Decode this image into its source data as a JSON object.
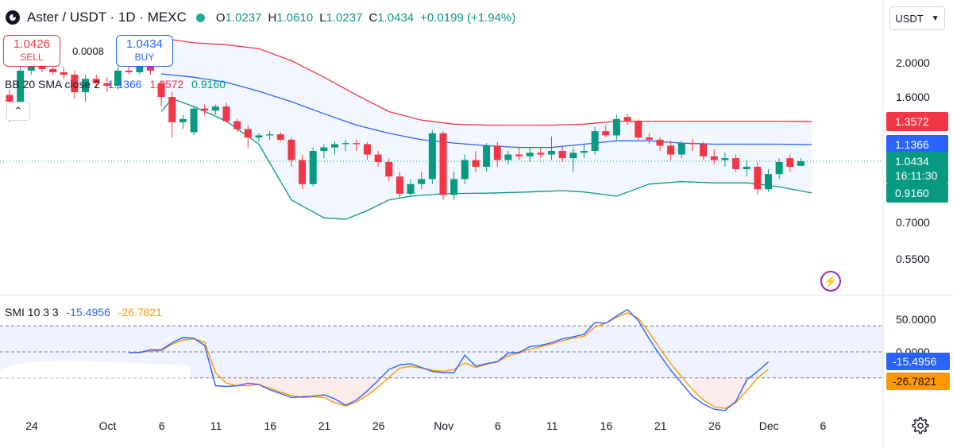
{
  "header": {
    "symbol": "Aster / USDT · 1D · MEXC",
    "o_label": "O",
    "open": "1.0237",
    "h_label": "H",
    "high": "1.0610",
    "l_label": "L",
    "low": "1.0237",
    "c_label": "C",
    "close": "1.0434",
    "change": "+0.0199 (+1.94%)"
  },
  "trade": {
    "sell_price": "1.0426",
    "sell_label": "SELL",
    "spread": "0.0008",
    "buy_price": "1.0434",
    "buy_label": "BUY"
  },
  "indicators": {
    "bb_label": "BB 20 SMA close 2",
    "bb_mid": "1.1366",
    "bb_upper": "1.3572",
    "bb_lower": "0.9160",
    "smi_label": "SMI 10 3 3",
    "smi_value": "-15.4956",
    "smi_signal": "-26.7821"
  },
  "currency_selector": "USDT",
  "colors": {
    "up": "#089981",
    "down": "#f23645",
    "bb_basis": "#2962ff",
    "bb_upper": "#f23645",
    "bb_lower": "#089981",
    "smi": "#2962ff",
    "signal": "#ff9800",
    "axis_text": "#131722"
  },
  "chart_data": {
    "type": "candlestick",
    "title": "Aster / USDT · 1D · MEXC",
    "x_ticks": [
      "24",
      "Oct",
      "6",
      "11",
      "16",
      "21",
      "26",
      "Nov",
      "6",
      "11",
      "16",
      "21",
      "26",
      "Dec",
      "6"
    ],
    "x_tick_days": [
      0,
      7,
      12,
      17,
      22,
      27,
      32,
      38,
      43,
      48,
      53,
      58,
      63,
      68,
      73
    ],
    "y_ticks": [
      "2.0000",
      "1.6000",
      "0.7000",
      "0.5500"
    ],
    "y_tick_values": [
      2.0,
      1.6,
      0.7,
      0.55
    ],
    "price_labels": [
      {
        "text": "1.3572",
        "value": 1.3572,
        "kind": "upper"
      },
      {
        "text": "1.1366",
        "value": 1.1366,
        "kind": "basis"
      },
      {
        "text": "1.0434",
        "value": 1.0434,
        "kind": "last",
        "sub": "16:11:30"
      },
      {
        "text": "0.9160",
        "value": 0.916,
        "kind": "lower"
      }
    ],
    "candles": [
      {
        "d": 0,
        "o": 1.62,
        "h": 1.68,
        "l": 1.35,
        "c": 1.55
      },
      {
        "d": 1,
        "o": 1.55,
        "h": 1.95,
        "l": 1.5,
        "c": 1.9
      },
      {
        "d": 2,
        "o": 1.9,
        "h": 2.0,
        "l": 1.85,
        "c": 1.95
      },
      {
        "d": 3,
        "o": 1.95,
        "h": 2.05,
        "l": 1.88,
        "c": 1.92
      },
      {
        "d": 4,
        "o": 1.92,
        "h": 1.98,
        "l": 1.85,
        "c": 1.88
      },
      {
        "d": 5,
        "o": 1.88,
        "h": 1.95,
        "l": 1.8,
        "c": 1.85
      },
      {
        "d": 6,
        "o": 1.85,
        "h": 1.9,
        "l": 1.58,
        "c": 1.65
      },
      {
        "d": 7,
        "o": 1.65,
        "h": 1.85,
        "l": 1.55,
        "c": 1.8
      },
      {
        "d": 8,
        "o": 1.8,
        "h": 1.85,
        "l": 1.7,
        "c": 1.75
      },
      {
        "d": 9,
        "o": 1.75,
        "h": 1.82,
        "l": 1.65,
        "c": 1.72
      },
      {
        "d": 10,
        "o": 1.72,
        "h": 1.95,
        "l": 1.68,
        "c": 1.9
      },
      {
        "d": 11,
        "o": 1.9,
        "h": 1.98,
        "l": 1.85,
        "c": 1.88
      },
      {
        "d": 12,
        "o": 1.88,
        "h": 2.08,
        "l": 1.85,
        "c": 2.02
      },
      {
        "d": 13,
        "o": 2.02,
        "h": 2.05,
        "l": 1.85,
        "c": 1.9
      },
      {
        "d": 14,
        "o": 1.75,
        "h": 1.78,
        "l": 1.5,
        "c": 1.6
      },
      {
        "d": 15,
        "o": 1.6,
        "h": 1.65,
        "l": 1.2,
        "c": 1.35
      },
      {
        "d": 16,
        "o": 1.35,
        "h": 1.42,
        "l": 1.28,
        "c": 1.38
      },
      {
        "d": 17,
        "o": 1.25,
        "h": 1.5,
        "l": 1.22,
        "c": 1.48
      },
      {
        "d": 18,
        "o": 1.48,
        "h": 1.52,
        "l": 1.42,
        "c": 1.46
      },
      {
        "d": 19,
        "o": 1.46,
        "h": 1.52,
        "l": 1.42,
        "c": 1.5
      },
      {
        "d": 20,
        "o": 1.5,
        "h": 1.54,
        "l": 1.35,
        "c": 1.36
      },
      {
        "d": 21,
        "o": 1.36,
        "h": 1.38,
        "l": 1.25,
        "c": 1.28
      },
      {
        "d": 22,
        "o": 1.28,
        "h": 1.32,
        "l": 1.12,
        "c": 1.2
      },
      {
        "d": 23,
        "o": 1.2,
        "h": 1.24,
        "l": 1.16,
        "c": 1.22
      },
      {
        "d": 24,
        "o": 1.22,
        "h": 1.26,
        "l": 1.18,
        "c": 1.23
      },
      {
        "d": 25,
        "o": 1.23,
        "h": 1.25,
        "l": 1.16,
        "c": 1.18
      },
      {
        "d": 26,
        "o": 1.18,
        "h": 1.2,
        "l": 1.02,
        "c": 1.05
      },
      {
        "d": 27,
        "o": 1.05,
        "h": 1.08,
        "l": 0.93,
        "c": 0.95
      },
      {
        "d": 28,
        "o": 0.95,
        "h": 1.12,
        "l": 0.94,
        "c": 1.1
      },
      {
        "d": 29,
        "o": 1.1,
        "h": 1.14,
        "l": 1.06,
        "c": 1.12
      },
      {
        "d": 30,
        "o": 1.12,
        "h": 1.16,
        "l": 1.08,
        "c": 1.14
      },
      {
        "d": 31,
        "o": 1.14,
        "h": 1.18,
        "l": 1.1,
        "c": 1.15
      },
      {
        "d": 32,
        "o": 1.15,
        "h": 1.18,
        "l": 1.1,
        "c": 1.14
      },
      {
        "d": 33,
        "o": 1.14,
        "h": 1.16,
        "l": 1.05,
        "c": 1.08
      },
      {
        "d": 34,
        "o": 1.08,
        "h": 1.1,
        "l": 1.02,
        "c": 1.04
      },
      {
        "d": 35,
        "o": 1.04,
        "h": 1.06,
        "l": 0.96,
        "c": 0.98
      },
      {
        "d": 36,
        "o": 0.98,
        "h": 1.0,
        "l": 0.88,
        "c": 0.91
      },
      {
        "d": 37,
        "o": 0.91,
        "h": 0.97,
        "l": 0.89,
        "c": 0.95
      },
      {
        "d": 38,
        "o": 0.95,
        "h": 1.0,
        "l": 0.93,
        "c": 0.97
      },
      {
        "d": 39,
        "o": 0.97,
        "h": 1.27,
        "l": 0.95,
        "c": 1.24
      },
      {
        "d": 40,
        "o": 1.24,
        "h": 1.26,
        "l": 0.86,
        "c": 0.9
      },
      {
        "d": 41,
        "o": 0.9,
        "h": 1.0,
        "l": 0.86,
        "c": 0.97
      },
      {
        "d": 42,
        "o": 0.97,
        "h": 1.08,
        "l": 0.95,
        "c": 1.05
      },
      {
        "d": 43,
        "o": 1.05,
        "h": 1.1,
        "l": 1.0,
        "c": 1.02
      },
      {
        "d": 44,
        "o": 1.02,
        "h": 1.15,
        "l": 1.0,
        "c": 1.13
      },
      {
        "d": 45,
        "o": 1.13,
        "h": 1.16,
        "l": 1.02,
        "c": 1.05
      },
      {
        "d": 46,
        "o": 1.05,
        "h": 1.1,
        "l": 1.03,
        "c": 1.08
      },
      {
        "d": 47,
        "o": 1.08,
        "h": 1.12,
        "l": 1.05,
        "c": 1.07
      },
      {
        "d": 48,
        "o": 1.07,
        "h": 1.12,
        "l": 1.04,
        "c": 1.09
      },
      {
        "d": 49,
        "o": 1.09,
        "h": 1.12,
        "l": 1.06,
        "c": 1.08
      },
      {
        "d": 50,
        "o": 1.08,
        "h": 1.21,
        "l": 1.05,
        "c": 1.1
      },
      {
        "d": 51,
        "o": 1.1,
        "h": 1.13,
        "l": 1.04,
        "c": 1.06
      },
      {
        "d": 52,
        "o": 1.06,
        "h": 1.12,
        "l": 1.0,
        "c": 1.09
      },
      {
        "d": 53,
        "o": 1.09,
        "h": 1.14,
        "l": 1.06,
        "c": 1.1
      },
      {
        "d": 54,
        "o": 1.1,
        "h": 1.3,
        "l": 1.08,
        "c": 1.26
      },
      {
        "d": 55,
        "o": 1.26,
        "h": 1.32,
        "l": 1.2,
        "c": 1.22
      },
      {
        "d": 56,
        "o": 1.22,
        "h": 1.42,
        "l": 1.18,
        "c": 1.38
      },
      {
        "d": 57,
        "o": 1.4,
        "h": 1.43,
        "l": 1.32,
        "c": 1.36
      },
      {
        "d": 58,
        "o": 1.36,
        "h": 1.38,
        "l": 1.18,
        "c": 1.2
      },
      {
        "d": 59,
        "o": 1.2,
        "h": 1.24,
        "l": 1.14,
        "c": 1.18
      },
      {
        "d": 60,
        "o": 1.18,
        "h": 1.2,
        "l": 1.1,
        "c": 1.13
      },
      {
        "d": 61,
        "o": 1.13,
        "h": 1.17,
        "l": 1.05,
        "c": 1.08
      },
      {
        "d": 62,
        "o": 1.08,
        "h": 1.17,
        "l": 1.06,
        "c": 1.15
      },
      {
        "d": 63,
        "o": 1.15,
        "h": 1.19,
        "l": 1.1,
        "c": 1.14
      },
      {
        "d": 64,
        "o": 1.14,
        "h": 1.16,
        "l": 1.05,
        "c": 1.07
      },
      {
        "d": 65,
        "o": 1.07,
        "h": 1.11,
        "l": 1.03,
        "c": 1.05
      },
      {
        "d": 66,
        "o": 1.05,
        "h": 1.09,
        "l": 1.02,
        "c": 1.06
      },
      {
        "d": 67,
        "o": 1.06,
        "h": 1.08,
        "l": 1.0,
        "c": 1.01
      },
      {
        "d": 68,
        "o": 1.01,
        "h": 1.05,
        "l": 0.98,
        "c": 1.02
      },
      {
        "d": 69,
        "o": 1.02,
        "h": 1.04,
        "l": 0.9,
        "c": 0.93
      },
      {
        "d": 70,
        "o": 0.93,
        "h": 1.01,
        "l": 0.92,
        "c": 0.99
      },
      {
        "d": 71,
        "o": 0.99,
        "h": 1.06,
        "l": 0.97,
        "c": 1.04
      },
      {
        "d": 72,
        "o": 1.06,
        "h": 1.08,
        "l": 1.0,
        "c": 1.02
      },
      {
        "d": 73,
        "o": 1.0237,
        "h": 1.061,
        "l": 1.0237,
        "c": 1.0434
      }
    ],
    "bb_basis": [
      [
        14,
        1.86
      ],
      [
        17,
        1.82
      ],
      [
        20,
        1.76
      ],
      [
        23,
        1.66
      ],
      [
        26,
        1.55
      ],
      [
        29,
        1.43
      ],
      [
        32,
        1.32
      ],
      [
        35,
        1.24
      ],
      [
        38,
        1.18
      ],
      [
        41,
        1.15
      ],
      [
        44,
        1.13
      ],
      [
        47,
        1.12
      ],
      [
        50,
        1.12
      ],
      [
        53,
        1.14
      ],
      [
        56,
        1.17
      ],
      [
        59,
        1.17
      ],
      [
        62,
        1.15
      ],
      [
        65,
        1.14
      ],
      [
        68,
        1.14
      ],
      [
        71,
        1.14
      ],
      [
        74,
        1.1366
      ]
    ],
    "bb_upper": [
      [
        14,
        2.25
      ],
      [
        17,
        2.2
      ],
      [
        20,
        2.18
      ],
      [
        23,
        2.14
      ],
      [
        26,
        2.02
      ],
      [
        29,
        1.82
      ],
      [
        32,
        1.62
      ],
      [
        35,
        1.45
      ],
      [
        38,
        1.37
      ],
      [
        41,
        1.33
      ],
      [
        44,
        1.32
      ],
      [
        47,
        1.32
      ],
      [
        50,
        1.32
      ],
      [
        53,
        1.33
      ],
      [
        56,
        1.36
      ],
      [
        59,
        1.36
      ],
      [
        62,
        1.36
      ],
      [
        65,
        1.36
      ],
      [
        68,
        1.36
      ],
      [
        71,
        1.36
      ],
      [
        74,
        1.3572
      ]
    ],
    "bb_lower": [
      [
        14,
        1.45
      ],
      [
        15,
        1.58
      ],
      [
        17,
        1.5
      ],
      [
        20,
        1.36
      ],
      [
        23,
        1.14
      ],
      [
        26,
        0.86
      ],
      [
        29,
        0.73
      ],
      [
        31,
        0.72
      ],
      [
        33,
        0.78
      ],
      [
        35,
        0.86
      ],
      [
        37,
        0.89
      ],
      [
        40,
        0.91
      ],
      [
        44,
        0.915
      ],
      [
        48,
        0.92
      ],
      [
        51,
        0.925
      ],
      [
        53,
        0.92
      ],
      [
        56,
        0.89
      ],
      [
        59,
        0.95
      ],
      [
        62,
        0.96
      ],
      [
        65,
        0.955
      ],
      [
        68,
        0.955
      ],
      [
        71,
        0.94
      ],
      [
        74,
        0.916
      ]
    ],
    "smi_ylim": [
      -100,
      70
    ],
    "smi_ticks": [
      "50.0000",
      "0.0000"
    ],
    "smi_tick_values": [
      50,
      0
    ],
    "smi_bands": [
      40,
      -40
    ],
    "smi": [
      [
        11,
        -1
      ],
      [
        12,
        -1
      ],
      [
        13,
        3
      ],
      [
        14,
        3
      ],
      [
        15,
        14
      ],
      [
        16,
        22
      ],
      [
        17,
        21
      ],
      [
        18,
        10
      ],
      [
        19,
        -52
      ],
      [
        20,
        -53
      ],
      [
        21,
        -52
      ],
      [
        22,
        -48
      ],
      [
        23,
        -50
      ],
      [
        24,
        -58
      ],
      [
        25,
        -64
      ],
      [
        26,
        -70
      ],
      [
        27,
        -69
      ],
      [
        28,
        -68
      ],
      [
        29,
        -66
      ],
      [
        30,
        -72
      ],
      [
        31,
        -82
      ],
      [
        32,
        -74
      ],
      [
        33,
        -60
      ],
      [
        34,
        -44
      ],
      [
        35,
        -27
      ],
      [
        36,
        -20
      ],
      [
        37,
        -18
      ],
      [
        38,
        -24
      ],
      [
        39,
        -30
      ],
      [
        40,
        -32
      ],
      [
        41,
        -32
      ],
      [
        42,
        -5
      ],
      [
        43,
        -22
      ],
      [
        44,
        -18
      ],
      [
        45,
        -15
      ],
      [
        46,
        -2
      ],
      [
        47,
        -1
      ],
      [
        48,
        8
      ],
      [
        49,
        10
      ],
      [
        50,
        14
      ],
      [
        51,
        20
      ],
      [
        52,
        23
      ],
      [
        53,
        27
      ],
      [
        54,
        45
      ],
      [
        55,
        44
      ],
      [
        56,
        55
      ],
      [
        57,
        65
      ],
      [
        58,
        48
      ],
      [
        59,
        20
      ],
      [
        60,
        -5
      ],
      [
        61,
        -28
      ],
      [
        62,
        -48
      ],
      [
        63,
        -68
      ],
      [
        64,
        -80
      ],
      [
        65,
        -88
      ],
      [
        66,
        -90
      ],
      [
        67,
        -76
      ],
      [
        68,
        -43
      ],
      [
        69,
        -30
      ],
      [
        70,
        -15.4956
      ]
    ],
    "signal": [
      [
        11,
        -1
      ],
      [
        12,
        -1
      ],
      [
        13,
        1
      ],
      [
        14,
        2
      ],
      [
        15,
        12
      ],
      [
        16,
        18
      ],
      [
        17,
        20
      ],
      [
        18,
        15
      ],
      [
        19,
        -32
      ],
      [
        20,
        -48
      ],
      [
        21,
        -52
      ],
      [
        22,
        -52
      ],
      [
        23,
        -50
      ],
      [
        24,
        -56
      ],
      [
        25,
        -62
      ],
      [
        26,
        -67
      ],
      [
        27,
        -70
      ],
      [
        28,
        -69
      ],
      [
        29,
        -70
      ],
      [
        30,
        -78
      ],
      [
        31,
        -83
      ],
      [
        32,
        -77
      ],
      [
        33,
        -67
      ],
      [
        34,
        -54
      ],
      [
        35,
        -39
      ],
      [
        36,
        -25
      ],
      [
        37,
        -22
      ],
      [
        38,
        -25
      ],
      [
        39,
        -28
      ],
      [
        40,
        -30
      ],
      [
        41,
        -27
      ],
      [
        42,
        -17
      ],
      [
        43,
        -24
      ],
      [
        44,
        -19
      ],
      [
        45,
        -15
      ],
      [
        46,
        -6
      ],
      [
        47,
        -2
      ],
      [
        48,
        4
      ],
      [
        49,
        8
      ],
      [
        50,
        12
      ],
      [
        51,
        17
      ],
      [
        52,
        21
      ],
      [
        53,
        24
      ],
      [
        54,
        38
      ],
      [
        55,
        44
      ],
      [
        56,
        53
      ],
      [
        57,
        60
      ],
      [
        58,
        52
      ],
      [
        59,
        30
      ],
      [
        60,
        5
      ],
      [
        61,
        -18
      ],
      [
        62,
        -38
      ],
      [
        63,
        -58
      ],
      [
        64,
        -74
      ],
      [
        65,
        -84
      ],
      [
        66,
        -87
      ],
      [
        67,
        -78
      ],
      [
        68,
        -60
      ],
      [
        69,
        -40
      ],
      [
        70,
        -26.7821
      ]
    ]
  }
}
